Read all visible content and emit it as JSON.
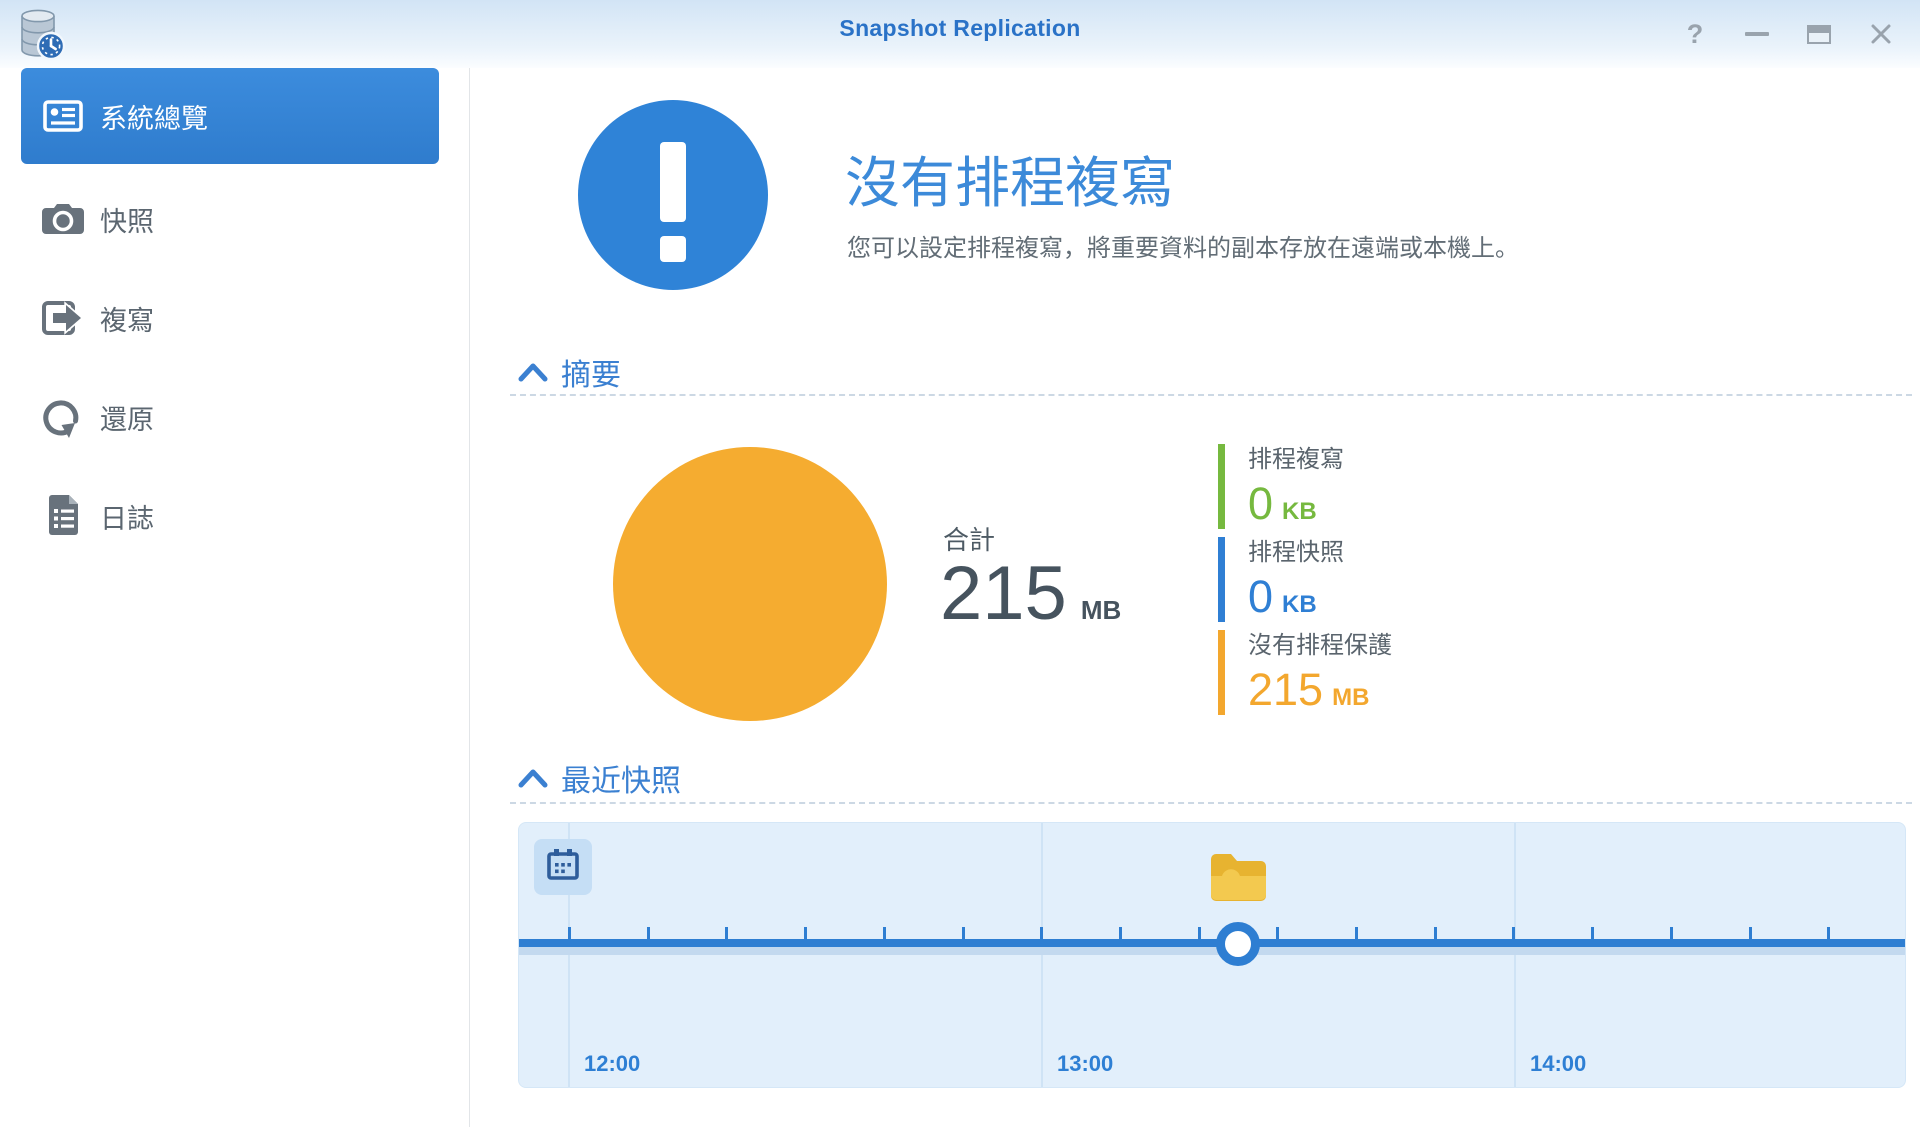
{
  "header": {
    "title": "Snapshot Replication",
    "help_glyph": "?"
  },
  "window_controls": [
    "help-icon",
    "minimize-icon",
    "maximize-icon",
    "close-icon"
  ],
  "sidebar": {
    "items": [
      {
        "label": "系統總覽",
        "icon": "overview-card-icon",
        "selected": true
      },
      {
        "label": "快照",
        "icon": "camera-icon",
        "selected": false
      },
      {
        "label": "複寫",
        "icon": "replicate-arrow-icon",
        "selected": false
      },
      {
        "label": "還原",
        "icon": "restore-circular-arrow-icon",
        "selected": false
      },
      {
        "label": "日誌",
        "icon": "log-document-icon",
        "selected": false
      }
    ]
  },
  "main": {
    "alert": {
      "title": "沒有排程複寫",
      "description": "您可以設定排程複寫，將重要資料的副本存放在遠端或本機上。"
    },
    "summary": {
      "section_title": "摘要",
      "total_label": "合計",
      "total_value": "215",
      "total_unit": "MB",
      "pie_color": "#f5ac30",
      "legend": [
        {
          "label": "排程複寫",
          "value": "0",
          "unit": "KB",
          "color": "#76b93f"
        },
        {
          "label": "排程快照",
          "value": "0",
          "unit": "KB",
          "color": "#2f7fd4"
        },
        {
          "label": "沒有排程保護",
          "value": "215",
          "unit": "MB",
          "color": "#f3a72e"
        }
      ]
    },
    "recent": {
      "section_title": "最近快照",
      "time_labels": [
        "12:00",
        "13:00",
        "14:00"
      ],
      "timeline_color": "#2e7ed2"
    }
  }
}
